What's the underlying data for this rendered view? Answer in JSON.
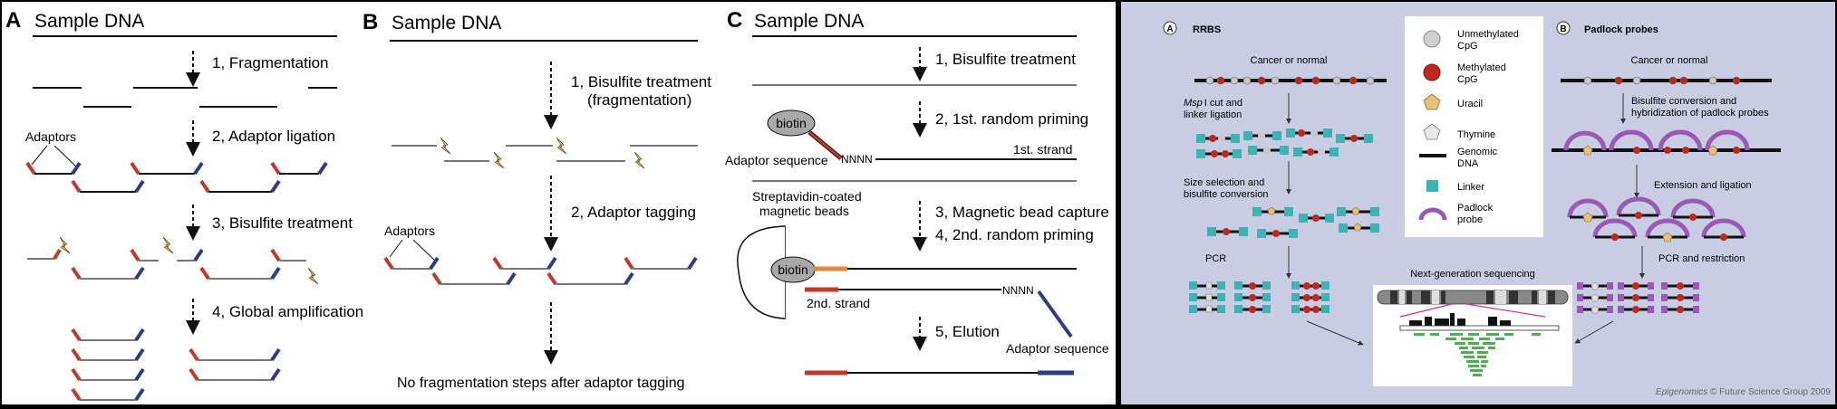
{
  "left_figure": {
    "panel_a": {
      "letter": "A",
      "title": "Sample DNA",
      "steps": [
        "1, Fragmentation",
        "2, Adaptor ligation",
        "3, Bisulfite treatment",
        "4, Global amplification"
      ],
      "adaptors_label": "Adaptors"
    },
    "panel_b": {
      "letter": "B",
      "title": "Sample DNA",
      "step1_line1": "1, Bisulfite treatment",
      "step1_line2": "(fragmentation)",
      "step2": "2, Adaptor tagging",
      "adaptors_label": "Adaptors",
      "footer": "No fragmentation steps after adaptor tagging"
    },
    "panel_c": {
      "letter": "C",
      "title": "Sample DNA",
      "step1": "1, Bisulfite treatment",
      "step2": "2, 1st. random priming",
      "biotin_label": "biotin",
      "nnnn_label": "NNNN",
      "adaptor_sequence_label": "Adaptor sequence",
      "first_strand_label": "1st. strand",
      "beads_line1": "Streptavidin-coated",
      "beads_line2": "magnetic beads",
      "step3": "3, Magnetic bead capture",
      "step4": "4, 2nd. random priming",
      "second_strand_label": "2nd. strand",
      "step5": "5, Elution"
    }
  },
  "right_figure": {
    "colors": {
      "background": "#c9cde3",
      "linker": "#3fb3b3",
      "methylated": "#c0281e",
      "unmethylated": "#c8c8c8",
      "uracil": "#e8c07a",
      "padlock": "#9b59b6"
    },
    "panel_a": {
      "letter": "A",
      "title": "RRBS",
      "cancer_label": "Cancer or normal",
      "msp_italic": "Msp",
      "msp_rest": "I cut and",
      "linker_ligation": "linker ligation",
      "size_sel_line1": "Size selection and",
      "size_sel_line2": "bisulfite conversion",
      "pcr_label": "PCR"
    },
    "legend": [
      {
        "icon": "unmethylated-cpg",
        "line1": "Unmethylated",
        "line2": "CpG"
      },
      {
        "icon": "methylated-cpg",
        "line1": "Methylated",
        "line2": "CpG"
      },
      {
        "icon": "uracil",
        "line1": "Uracil",
        "line2": ""
      },
      {
        "icon": "thymine",
        "line1": "Thymine",
        "line2": ""
      },
      {
        "icon": "genomic-dna",
        "line1": "Genomic",
        "line2": "DNA"
      },
      {
        "icon": "linker",
        "line1": "Linker",
        "line2": ""
      },
      {
        "icon": "padlock-probe",
        "line1": "Padlock",
        "line2": "probe"
      }
    ],
    "panel_b": {
      "letter": "B",
      "title": "Padlock probes",
      "cancer_label": "Cancer or normal",
      "bisulfite_line1": "Bisulfite conversion and",
      "bisulfite_line2": "hybridization of padlock probes",
      "extension_label": "Extension and ligation",
      "pcr_restriction": "PCR and restriction"
    },
    "ngs_label": "Next-generation sequencing",
    "credit_italic": "Epigenomics",
    "credit_rest": " © Future Science Group 2009"
  }
}
